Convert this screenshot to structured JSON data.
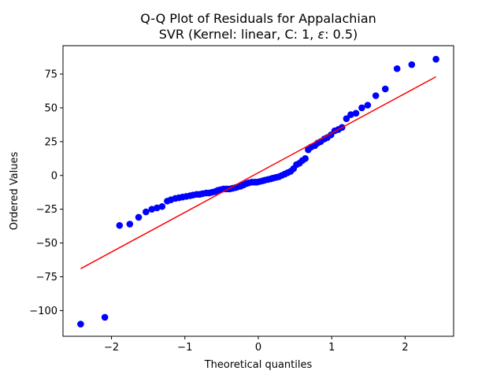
{
  "chart_data": {
    "type": "scatter",
    "title": "Q-Q Plot of Residuals for Appalachian",
    "subtitle_prefix": "SVR (Kernel: linear, C: 1, ",
    "subtitle_epsilon": "ε",
    "subtitle_suffix": ": 0.5)",
    "xlabel": "Theoretical quantiles",
    "ylabel": "Ordered Values",
    "xlim": [
      -2.66,
      2.66
    ],
    "ylim": [
      -119,
      96
    ],
    "xticks": [
      -2,
      -1,
      0,
      1,
      2
    ],
    "xtick_labels": [
      "−2",
      "−1",
      "0",
      "1",
      "2"
    ],
    "yticks": [
      -100,
      -75,
      -50,
      -25,
      0,
      25,
      50,
      75
    ],
    "ytick_labels": [
      "−100",
      "−75",
      "−50",
      "−25",
      "0",
      "25",
      "50",
      "75"
    ],
    "grid": false,
    "point_color": "#0000ff",
    "line_color": "#ff0000",
    "fit_line": {
      "x": [
        -2.42,
        2.42
      ],
      "y": [
        -69,
        73
      ]
    },
    "points": [
      [
        -2.42,
        -110
      ],
      [
        -2.09,
        -105
      ],
      [
        -1.89,
        -37
      ],
      [
        -1.75,
        -36
      ],
      [
        -1.63,
        -31
      ],
      [
        -1.53,
        -27
      ],
      [
        -1.45,
        -25
      ],
      [
        -1.38,
        -24
      ],
      [
        -1.31,
        -23
      ],
      [
        -1.24,
        -19
      ],
      [
        -1.19,
        -18
      ],
      [
        -1.13,
        -17
      ],
      [
        -1.08,
        -16.5
      ],
      [
        -1.03,
        -16
      ],
      [
        -0.98,
        -15.5
      ],
      [
        -0.93,
        -15
      ],
      [
        -0.89,
        -14.5
      ],
      [
        -0.84,
        -14
      ],
      [
        -0.8,
        -14
      ],
      [
        -0.76,
        -13.5
      ],
      [
        -0.71,
        -13
      ],
      [
        -0.67,
        -13
      ],
      [
        -0.63,
        -12.5
      ],
      [
        -0.59,
        -12
      ],
      [
        -0.55,
        -11
      ],
      [
        -0.51,
        -10.5
      ],
      [
        -0.47,
        -10
      ],
      [
        -0.43,
        -10
      ],
      [
        -0.39,
        -10
      ],
      [
        -0.35,
        -9.5
      ],
      [
        -0.31,
        -9
      ],
      [
        -0.28,
        -8.5
      ],
      [
        -0.24,
        -8
      ],
      [
        -0.2,
        -7
      ],
      [
        -0.16,
        -6
      ],
      [
        -0.13,
        -5.5
      ],
      [
        -0.09,
        -5
      ],
      [
        -0.05,
        -5
      ],
      [
        -0.02,
        -5
      ],
      [
        0.02,
        -4.5
      ],
      [
        0.06,
        -4
      ],
      [
        0.09,
        -3.5
      ],
      [
        0.13,
        -3
      ],
      [
        0.17,
        -2.5
      ],
      [
        0.2,
        -2
      ],
      [
        0.24,
        -1.5
      ],
      [
        0.28,
        -1
      ],
      [
        0.32,
        0
      ],
      [
        0.36,
        1
      ],
      [
        0.4,
        2
      ],
      [
        0.44,
        3
      ],
      [
        0.48,
        5
      ],
      [
        0.52,
        8
      ],
      [
        0.56,
        9
      ],
      [
        0.6,
        11
      ],
      [
        0.64,
        12.5
      ],
      [
        0.68,
        19
      ],
      [
        0.72,
        21
      ],
      [
        0.77,
        22
      ],
      [
        0.81,
        24
      ],
      [
        0.85,
        25
      ],
      [
        0.9,
        27
      ],
      [
        0.94,
        28
      ],
      [
        0.99,
        30
      ],
      [
        1.04,
        33
      ],
      [
        1.09,
        34
      ],
      [
        1.14,
        35.5
      ],
      [
        1.2,
        42
      ],
      [
        1.26,
        45
      ],
      [
        1.33,
        46
      ],
      [
        1.41,
        50
      ],
      [
        1.49,
        52
      ],
      [
        1.6,
        59
      ],
      [
        1.73,
        64
      ],
      [
        1.89,
        79
      ],
      [
        2.09,
        82
      ],
      [
        2.42,
        86
      ]
    ]
  }
}
